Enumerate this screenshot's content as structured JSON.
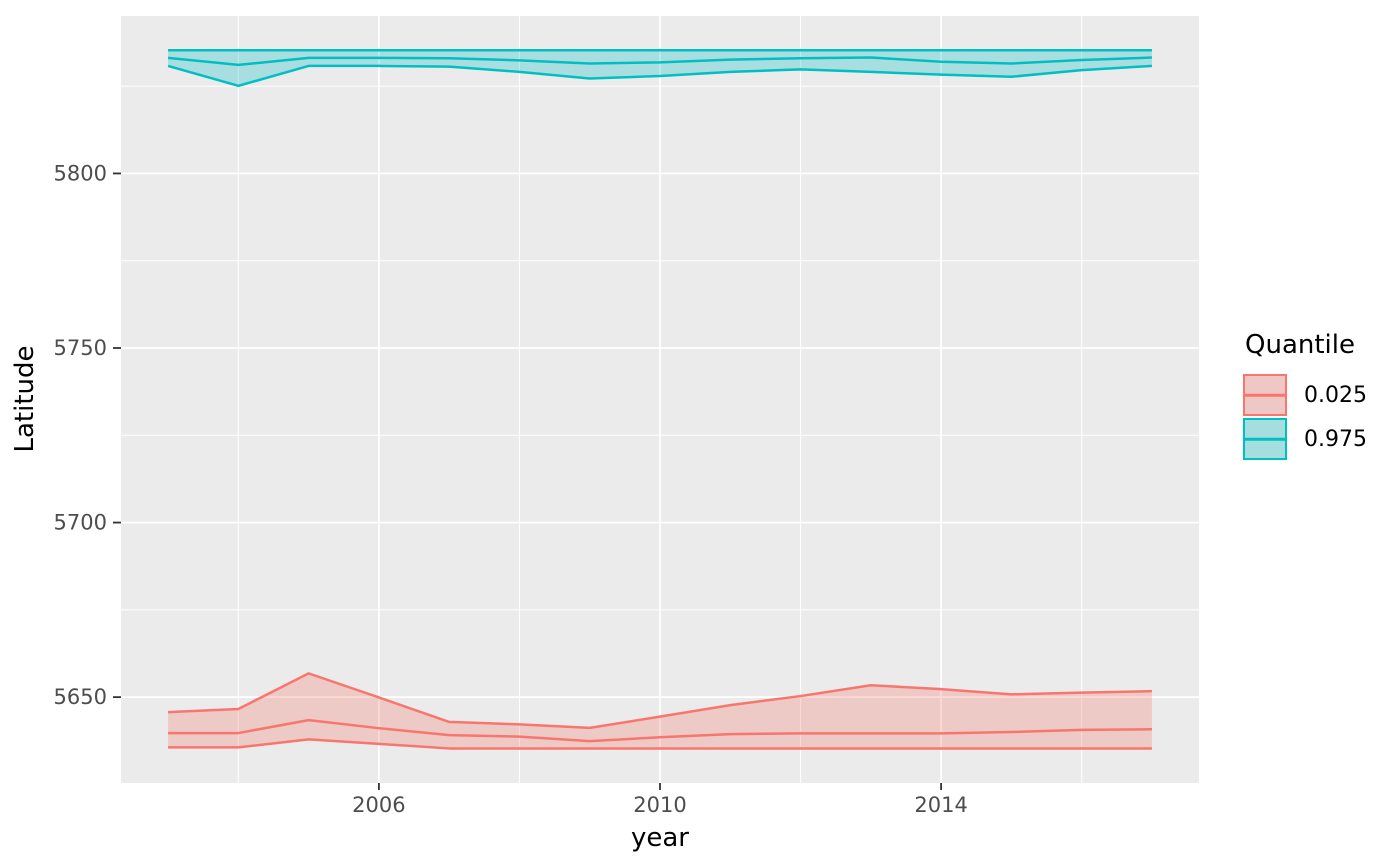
{
  "colors": {
    "panel_bg": "#EBEBEB",
    "grid": "#FFFFFF",
    "tick": "#333333",
    "tick_text": "#4D4D4D",
    "salmon": "#F8766D",
    "teal": "#00BFC4",
    "ribbon_alpha": 0.28
  },
  "axes": {
    "x": {
      "label": "year",
      "domain": [
        2002.33,
        2017.67
      ],
      "ticks": [
        {
          "value": 2006,
          "label": "2006"
        },
        {
          "value": 2010,
          "label": "2010"
        },
        {
          "value": 2014,
          "label": "2014"
        }
      ],
      "minor": [
        2004,
        2008,
        2012,
        2016
      ]
    },
    "y": {
      "label": "Latitude",
      "domain": [
        5625.4,
        5845.1
      ],
      "ticks": [
        {
          "value": 5650,
          "label": "5650"
        },
        {
          "value": 5700,
          "label": "5700"
        },
        {
          "value": 5750,
          "label": "5750"
        },
        {
          "value": 5800,
          "label": "5800"
        }
      ],
      "minor": [
        5675,
        5725,
        5775,
        5825
      ]
    }
  },
  "legend": {
    "title": "Quantile",
    "items": [
      {
        "label": "0.025",
        "color": "#F8766D"
      },
      {
        "label": "0.975",
        "color": "#00BFC4"
      }
    ]
  },
  "chart_data": {
    "type": "area",
    "title": "",
    "xlabel": "year",
    "ylabel": "Latitude",
    "xlim": [
      2002.33,
      2017.67
    ],
    "ylim": [
      5625.4,
      5845.1
    ],
    "grid": "on",
    "legend_position": "right",
    "x": [
      2003,
      2004,
      2005,
      2006,
      2007,
      2008,
      2009,
      2010,
      2011,
      2012,
      2013,
      2014,
      2015,
      2016,
      2017
    ],
    "bands": [
      {
        "quantile": "0.025",
        "color": "#F8766D",
        "upper": [
          5645.7,
          5646.6,
          5656.8,
          5649.9,
          5642.9,
          5642.2,
          5641.2,
          5644.4,
          5647.7,
          5650.3,
          5653.4,
          5652.3,
          5650.8,
          5651.3,
          5651.7
        ],
        "estimate": [
          5639.7,
          5639.7,
          5643.4,
          5641.1,
          5639.1,
          5638.7,
          5637.4,
          5638.5,
          5639.4,
          5639.6,
          5639.6,
          5639.6,
          5640.0,
          5640.6,
          5640.8
        ],
        "lower": [
          5635.6,
          5635.6,
          5637.9,
          5636.6,
          5635.3,
          5635.3,
          5635.3,
          5635.3,
          5635.3,
          5635.3,
          5635.3,
          5635.3,
          5635.3,
          5635.3,
          5635.3
        ]
      },
      {
        "quantile": "0.975",
        "color": "#00BFC4",
        "upper": [
          5835.3,
          5835.3,
          5835.3,
          5835.3,
          5835.3,
          5835.3,
          5835.3,
          5835.3,
          5835.3,
          5835.3,
          5835.3,
          5835.3,
          5835.3,
          5835.3,
          5835.3
        ],
        "estimate": [
          5833.1,
          5831.1,
          5833.1,
          5833.1,
          5833.0,
          5832.4,
          5831.5,
          5831.8,
          5832.6,
          5833.0,
          5833.2,
          5832.0,
          5831.5,
          5832.5,
          5833.2
        ],
        "lower": [
          5830.8,
          5825.1,
          5830.8,
          5830.8,
          5830.6,
          5829.1,
          5827.2,
          5827.9,
          5829.1,
          5829.8,
          5829.1,
          5828.3,
          5827.7,
          5829.6,
          5830.8
        ]
      }
    ]
  }
}
